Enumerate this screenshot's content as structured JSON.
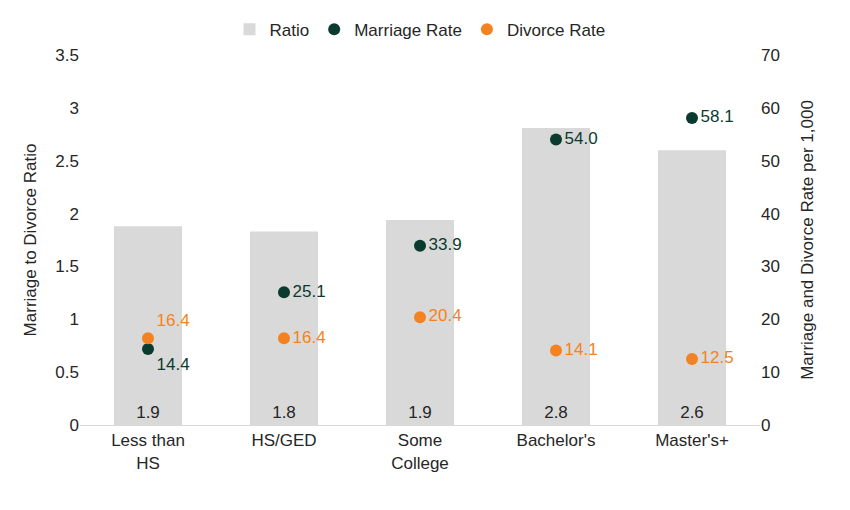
{
  "chart_data": {
    "type": "bar",
    "categories": [
      "Less than HS",
      "HS/GED",
      "Some College",
      "Bachelor's",
      "Master's+"
    ],
    "series": [
      {
        "name": "Ratio",
        "type": "bar",
        "color": "#d9d9d9",
        "values": [
          1.88,
          1.83,
          1.94,
          2.81,
          2.6
        ],
        "value_labels": [
          "1.9",
          "1.8",
          "1.9",
          "2.8",
          "2.6"
        ]
      },
      {
        "name": "Marriage Rate",
        "type": "scatter",
        "marker": "circle",
        "color": "#0b3b2e",
        "axis": "y2",
        "values": [
          14.4,
          25.1,
          33.9,
          54.0,
          58.1
        ],
        "value_labels": [
          "14.4",
          "25.1",
          "33.9",
          "54.0",
          "58.1"
        ]
      },
      {
        "name": "Divorce Rate",
        "type": "scatter",
        "marker": "circle",
        "color": "#f58220",
        "axis": "y2",
        "values": [
          16.4,
          16.4,
          20.4,
          14.1,
          12.5
        ],
        "value_labels": [
          "16.4",
          "16.4",
          "20.4",
          "14.1",
          "12.5"
        ]
      }
    ],
    "y_label": "Marriage to Divorce Ratio",
    "y2_label": "Marriage and Divorce Rate per 1,000",
    "ylim": [
      0,
      3.5
    ],
    "yticks": [
      0,
      0.5,
      1,
      1.5,
      2,
      2.5,
      3,
      3.5
    ],
    "y2lim": [
      0,
      70
    ],
    "y2ticks": [
      0,
      10,
      20,
      30,
      40,
      50,
      60,
      70
    ],
    "grid": false,
    "legend": "top",
    "data_labels": true
  }
}
